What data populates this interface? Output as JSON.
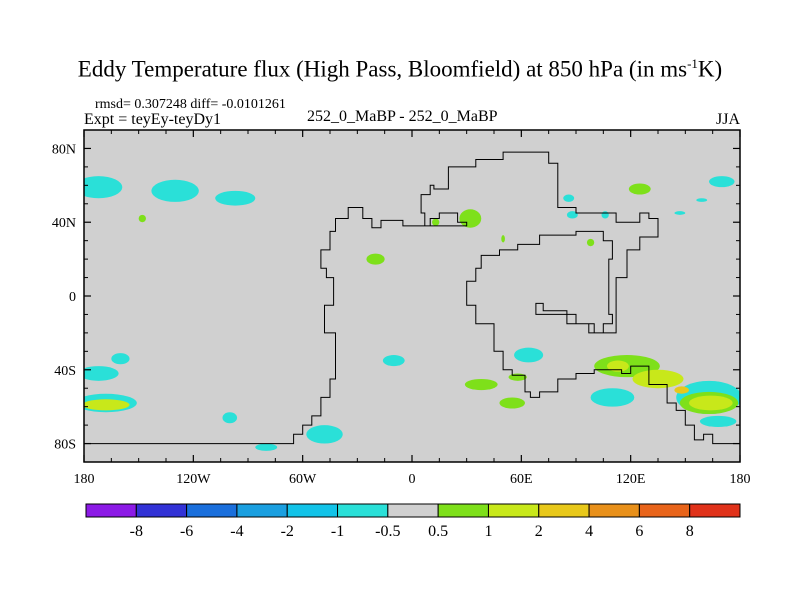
{
  "title": {
    "main": "Eddy Temperature flux (High Pass, Bloomfield) at 850 hPa (in ms",
    "sup": "-1",
    "tail": "K)"
  },
  "stats": "rmsd= 0.307248 diff= -0.0101261",
  "expt": "Expt = teyEy-teyDy1",
  "case": "252_0_MaBP - 252_0_MaBP",
  "season": "JJA",
  "chart_data": {
    "type": "contour_map",
    "title": "Eddy Temperature flux (High Pass, Bloomfield) at 850 hPa (in ms-1K)",
    "xlabel": "",
    "ylabel": "",
    "xlim": [
      -180,
      180
    ],
    "ylim": [
      -90,
      90
    ],
    "x_ticks": [
      {
        "value": -180,
        "label": "180"
      },
      {
        "value": -120,
        "label": "120W"
      },
      {
        "value": -60,
        "label": "60W"
      },
      {
        "value": 0,
        "label": "0"
      },
      {
        "value": 60,
        "label": "60E"
      },
      {
        "value": 120,
        "label": "120E"
      },
      {
        "value": 180,
        "label": "180"
      }
    ],
    "y_ticks": [
      {
        "value": 80,
        "label": "80N"
      },
      {
        "value": 40,
        "label": "40N"
      },
      {
        "value": 0,
        "label": "0"
      },
      {
        "value": -40,
        "label": "40S"
      },
      {
        "value": -80,
        "label": "80S"
      }
    ],
    "levels": [
      -8,
      -6,
      -4,
      -2,
      -1,
      -0.5,
      0.5,
      1,
      2,
      4,
      6,
      8
    ],
    "level_labels": [
      "-8",
      "-6",
      "-4",
      "-2",
      "-1",
      "-0.5",
      "0.5",
      "1",
      "2",
      "4",
      "6",
      "8"
    ],
    "colors": [
      "#8c1ae6",
      "#3232d6",
      "#1a6fdc",
      "#1a9fe0",
      "#12c3e8",
      "#2ae0d8",
      "#d0d0d0",
      "#7ee01a",
      "#c8e81a",
      "#e8c81a",
      "#e8901a",
      "#e8641a",
      "#e0321a"
    ],
    "background_color": "#d0d0d0",
    "regions": [
      {
        "lon": -172,
        "lat": 59,
        "rx": 13,
        "ry": 6,
        "color": "#2ae0d8"
      },
      {
        "lon": -130,
        "lat": 57,
        "rx": 13,
        "ry": 6,
        "color": "#2ae0d8"
      },
      {
        "lon": -97,
        "lat": 53,
        "rx": 11,
        "ry": 4,
        "color": "#2ae0d8"
      },
      {
        "lon": -148,
        "lat": 42,
        "rx": 2,
        "ry": 2,
        "color": "#7ee01a"
      },
      {
        "lon": -160,
        "lat": -34,
        "rx": 5,
        "ry": 3,
        "color": "#2ae0d8"
      },
      {
        "lon": -172,
        "lat": -42,
        "rx": 11,
        "ry": 4,
        "color": "#2ae0d8"
      },
      {
        "lon": -168,
        "lat": -58,
        "rx": 17,
        "ry": 5,
        "color": "#2ae0d8"
      },
      {
        "lon": -168,
        "lat": -59,
        "rx": 13,
        "ry": 3,
        "color": "#c8e81a"
      },
      {
        "lon": -100,
        "lat": -66,
        "rx": 4,
        "ry": 3,
        "color": "#2ae0d8"
      },
      {
        "lon": -48,
        "lat": -75,
        "rx": 10,
        "ry": 5,
        "color": "#2ae0d8"
      },
      {
        "lon": -80,
        "lat": -82,
        "rx": 6,
        "ry": 2,
        "color": "#2ae0d8"
      },
      {
        "lon": -10,
        "lat": -35,
        "rx": 6,
        "ry": 3,
        "color": "#2ae0d8"
      },
      {
        "lon": -20,
        "lat": 20,
        "rx": 5,
        "ry": 3,
        "color": "#7ee01a"
      },
      {
        "lon": 38,
        "lat": -48,
        "rx": 9,
        "ry": 3,
        "color": "#7ee01a"
      },
      {
        "lon": 32,
        "lat": 42,
        "rx": 6,
        "ry": 5,
        "color": "#7ee01a"
      },
      {
        "lon": 13,
        "lat": 40,
        "rx": 2,
        "ry": 2,
        "color": "#7ee01a"
      },
      {
        "lon": 50,
        "lat": 31,
        "rx": 1,
        "ry": 2,
        "color": "#7ee01a"
      },
      {
        "lon": 86,
        "lat": 53,
        "rx": 3,
        "ry": 2,
        "color": "#2ae0d8"
      },
      {
        "lon": 88,
        "lat": 44,
        "rx": 3,
        "ry": 2,
        "color": "#2ae0d8"
      },
      {
        "lon": 106,
        "lat": 44,
        "rx": 2,
        "ry": 2,
        "color": "#2ae0d8"
      },
      {
        "lon": 98,
        "lat": 29,
        "rx": 2,
        "ry": 2,
        "color": "#7ee01a"
      },
      {
        "lon": 125,
        "lat": 58,
        "rx": 6,
        "ry": 3,
        "color": "#7ee01a"
      },
      {
        "lon": 147,
        "lat": 45,
        "rx": 3,
        "ry": 1,
        "color": "#2ae0d8"
      },
      {
        "lon": 159,
        "lat": 52,
        "rx": 3,
        "ry": 1,
        "color": "#2ae0d8"
      },
      {
        "lon": 170,
        "lat": 62,
        "rx": 7,
        "ry": 3,
        "color": "#2ae0d8"
      },
      {
        "lon": 64,
        "lat": -32,
        "rx": 8,
        "ry": 4,
        "color": "#2ae0d8"
      },
      {
        "lon": 58,
        "lat": -44,
        "rx": 5,
        "ry": 2,
        "color": "#7ee01a"
      },
      {
        "lon": 110,
        "lat": -55,
        "rx": 12,
        "ry": 5,
        "color": "#2ae0d8"
      },
      {
        "lon": 55,
        "lat": -58,
        "rx": 7,
        "ry": 3,
        "color": "#7ee01a"
      },
      {
        "lon": 118,
        "lat": -38,
        "rx": 18,
        "ry": 6,
        "color": "#7ee01a"
      },
      {
        "lon": 113,
        "lat": -38,
        "rx": 6,
        "ry": 3,
        "color": "#c8e81a"
      },
      {
        "lon": 135,
        "lat": -45,
        "rx": 14,
        "ry": 5,
        "color": "#c8e81a"
      },
      {
        "lon": 163,
        "lat": -55,
        "rx": 18,
        "ry": 9,
        "color": "#2ae0d8"
      },
      {
        "lon": 163,
        "lat": -58,
        "rx": 16,
        "ry": 6,
        "color": "#7ee01a"
      },
      {
        "lon": 164,
        "lat": -58,
        "rx": 12,
        "ry": 4,
        "color": "#c8e81a"
      },
      {
        "lon": 148,
        "lat": -51,
        "rx": 4,
        "ry": 2,
        "color": "#e8c81a"
      },
      {
        "lon": 168,
        "lat": -68,
        "rx": 10,
        "ry": 3,
        "color": "#2ae0d8"
      }
    ],
    "coastlines": [
      [
        [
          -180,
          -80
        ],
        [
          -65,
          -80
        ],
        [
          -65,
          -75
        ],
        [
          -60,
          -75
        ],
        [
          -60,
          -70
        ],
        [
          -55,
          -70
        ],
        [
          -55,
          -65
        ],
        [
          -50,
          -65
        ],
        [
          -50,
          -55
        ],
        [
          -45,
          -55
        ],
        [
          -45,
          -45
        ],
        [
          -42,
          -45
        ],
        [
          -42,
          -20
        ],
        [
          -48,
          -20
        ],
        [
          -48,
          -5
        ],
        [
          -43,
          -5
        ],
        [
          -43,
          10
        ],
        [
          -47,
          10
        ],
        [
          -47,
          15
        ],
        [
          -50,
          15
        ],
        [
          -50,
          25
        ],
        [
          -45,
          25
        ],
        [
          -45,
          35
        ],
        [
          -42,
          35
        ],
        [
          -42,
          42
        ],
        [
          -35,
          42
        ],
        [
          -35,
          48
        ],
        [
          -27,
          48
        ],
        [
          -27,
          42
        ],
        [
          -22,
          42
        ],
        [
          -22,
          37
        ],
        [
          -17,
          37
        ],
        [
          -17,
          41
        ],
        [
          -5,
          41
        ],
        [
          -5,
          38
        ],
        [
          10,
          38
        ],
        [
          10,
          42
        ],
        [
          15,
          42
        ],
        [
          15,
          45
        ],
        [
          25,
          45
        ],
        [
          25,
          40
        ],
        [
          30,
          40
        ],
        [
          30,
          38
        ],
        [
          7,
          38
        ],
        [
          7,
          45
        ],
        [
          5,
          45
        ],
        [
          5,
          55
        ],
        [
          10,
          55
        ],
        [
          10,
          60
        ],
        [
          12,
          60
        ],
        [
          12,
          58
        ],
        [
          20,
          58
        ],
        [
          20,
          70
        ],
        [
          35,
          70
        ],
        [
          35,
          74
        ],
        [
          50,
          74
        ],
        [
          50,
          78
        ],
        [
          75,
          78
        ],
        [
          75,
          72
        ],
        [
          80,
          72
        ],
        [
          80,
          48
        ],
        [
          90,
          48
        ],
        [
          90,
          45
        ],
        [
          112,
          45
        ],
        [
          112,
          40
        ],
        [
          125,
          40
        ],
        [
          125,
          45
        ],
        [
          130,
          45
        ],
        [
          130,
          42
        ],
        [
          135,
          42
        ],
        [
          135,
          32
        ],
        [
          125,
          32
        ],
        [
          125,
          25
        ],
        [
          118,
          25
        ],
        [
          118,
          10
        ],
        [
          112,
          10
        ],
        [
          112,
          -20
        ],
        [
          100,
          -20
        ],
        [
          100,
          -15
        ],
        [
          90,
          -15
        ],
        [
          90,
          -10
        ],
        [
          68,
          -10
        ],
        [
          68,
          -4
        ],
        [
          72,
          -4
        ],
        [
          72,
          -8
        ],
        [
          85,
          -8
        ],
        [
          85,
          -15
        ],
        [
          97,
          -15
        ],
        [
          97,
          -20
        ],
        [
          105,
          -20
        ],
        [
          105,
          -15
        ],
        [
          110,
          -15
        ],
        [
          110,
          -10
        ],
        [
          108,
          -10
        ],
        [
          108,
          20
        ],
        [
          110,
          20
        ],
        [
          110,
          30
        ],
        [
          105,
          30
        ],
        [
          105,
          35
        ],
        [
          90,
          35
        ],
        [
          90,
          33
        ],
        [
          70,
          33
        ],
        [
          70,
          28
        ],
        [
          58,
          28
        ],
        [
          58,
          25
        ],
        [
          48,
          25
        ],
        [
          48,
          22
        ],
        [
          38,
          22
        ],
        [
          38,
          15
        ],
        [
          35,
          15
        ],
        [
          35,
          8
        ],
        [
          30,
          8
        ],
        [
          30,
          -5
        ],
        [
          35,
          -5
        ],
        [
          35,
          -15
        ],
        [
          45,
          -15
        ],
        [
          45,
          -30
        ],
        [
          50,
          -30
        ],
        [
          50,
          -40
        ],
        [
          55,
          -40
        ],
        [
          55,
          -43
        ],
        [
          62,
          -43
        ],
        [
          62,
          -52
        ],
        [
          65,
          -52
        ],
        [
          65,
          -55
        ],
        [
          70,
          -55
        ],
        [
          70,
          -52
        ],
        [
          80,
          -52
        ],
        [
          80,
          -45
        ],
        [
          90,
          -45
        ],
        [
          90,
          -42
        ],
        [
          100,
          -42
        ],
        [
          100,
          -40
        ],
        [
          115,
          -40
        ],
        [
          115,
          -42
        ],
        [
          120,
          -42
        ],
        [
          120,
          -38
        ],
        [
          130,
          -38
        ],
        [
          130,
          -48
        ],
        [
          140,
          -48
        ],
        [
          140,
          -58
        ],
        [
          145,
          -58
        ],
        [
          145,
          -62
        ],
        [
          150,
          -62
        ],
        [
          150,
          -70
        ],
        [
          155,
          -70
        ],
        [
          155,
          -78
        ],
        [
          160,
          -78
        ],
        [
          160,
          -75
        ],
        [
          165,
          -75
        ],
        [
          165,
          -80
        ],
        [
          180,
          -80
        ]
      ]
    ],
    "colorbar": {
      "position": "bottom",
      "orientation": "horizontal"
    }
  }
}
